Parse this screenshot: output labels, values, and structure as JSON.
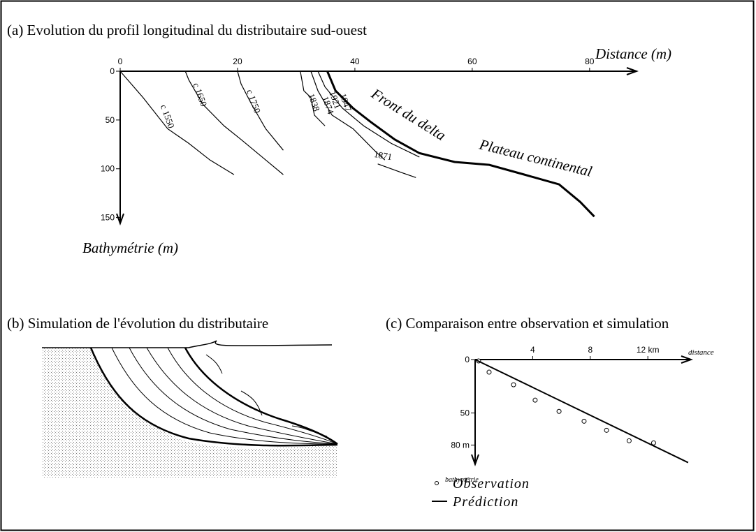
{
  "chart_data": [
    {
      "type": "line",
      "title": "(a) Evolution du profil longitudinal du distributaire sud-ouest",
      "xlabel": "Distance (m)",
      "ylabel": "Bathymétrie (m)",
      "xlim": [
        0,
        88
      ],
      "ylim": [
        0,
        156
      ],
      "y_inverted": true,
      "xticks": [
        0,
        20,
        40,
        60,
        80
      ],
      "yticks": [
        0,
        50,
        100,
        150
      ],
      "series": [
        {
          "name": "c 1550",
          "color": "#000",
          "x": [
            0,
            3.9,
            8.1,
            11.7,
            15.3,
            19.4
          ],
          "values": [
            0,
            27,
            59,
            74,
            91,
            106
          ]
        },
        {
          "name": "c 1650",
          "color": "#000",
          "x": [
            11.1,
            11.7,
            14.1,
            17.7,
            20.6,
            24.2,
            27.8
          ],
          "values": [
            0,
            9,
            34,
            56,
            70,
            88,
            106
          ]
        },
        {
          "name": "c 1750",
          "color": "#000",
          "x": [
            20,
            20.6,
            22.4,
            24.8,
            27.8
          ],
          "values": [
            0,
            13,
            34,
            59,
            81
          ]
        },
        {
          "name": "1838",
          "color": "#000",
          "x": [
            30.7,
            31.3,
            32.5,
            33.1,
            34.9
          ],
          "values": [
            0,
            20,
            27,
            45,
            56
          ]
        },
        {
          "name": "1874",
          "color": "#000",
          "x": [
            32.5,
            33.7,
            36.1,
            39.7,
            43.3,
            45.1
          ],
          "values": [
            0,
            20,
            45,
            59,
            81,
            91
          ]
        },
        {
          "name": "1871",
          "color": "#000",
          "x": [
            43.9,
            48,
            50.4
          ],
          "values": [
            95,
            104,
            109
          ]
        },
        {
          "name": "1921",
          "color": "#000",
          "x": [
            33.7,
            34.9,
            37.9,
            41.5,
            46.2,
            51
          ],
          "values": [
            0,
            16,
            38,
            56,
            74,
            88
          ]
        },
        {
          "name": "1947",
          "color": "#000",
          "bold": true,
          "x": [
            35.3,
            36.7,
            39.7,
            42.7,
            46.8,
            51,
            57,
            62.9,
            68.9,
            74.8,
            78.4,
            80.8
          ],
          "values": [
            0,
            20,
            38,
            52,
            70,
            84,
            93,
            96,
            106,
            116,
            134,
            149
          ]
        }
      ],
      "annotations": [
        "Front du delta",
        "Plateau continental"
      ]
    },
    {
      "type": "diagram",
      "title": "(b) Simulation de l'évolution du distributaire"
    },
    {
      "type": "scatter",
      "title": "(c) Comparaison entre observation et simulation",
      "xlabel": "distance",
      "ylabel": "bathymétrie",
      "xlim": [
        0,
        15
      ],
      "ylim": [
        0,
        98
      ],
      "y_inverted": true,
      "xticks": [
        4,
        8,
        {
          "value": 12,
          "label": "12 km"
        }
      ],
      "yticks": [
        0,
        50,
        {
          "value": 80,
          "label": "80 m"
        }
      ],
      "series": [
        {
          "name": "Observation",
          "marker": "circle",
          "color": "#000",
          "x": [
            0.24,
            0.97,
            2.67,
            4.17,
            5.83,
            7.57,
            9.13,
            10.7,
            12.4
          ],
          "values": [
            1.3,
            11.8,
            23.6,
            38,
            48.5,
            57.7,
            66.2,
            76,
            78
          ]
        },
        {
          "name": "Prédiction",
          "marker": "line",
          "color": "#000",
          "x": [
            0,
            14.8
          ],
          "values": [
            0,
            96.4
          ]
        }
      ]
    }
  ]
}
